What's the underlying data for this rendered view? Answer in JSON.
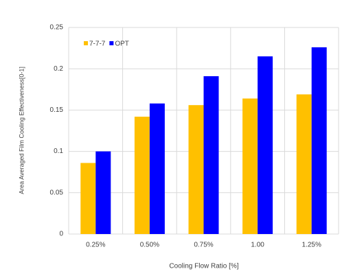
{
  "chart_data": {
    "type": "bar",
    "x_label": "Cooling Flow Ratio [%]",
    "y_label": "Area Averaged Film Cooling Effectiveness[0-1]",
    "categories": [
      "0.25%",
      "0.50%",
      "0.75%",
      "1.00",
      "1.25%"
    ],
    "series": [
      {
        "name": "7-7-7",
        "color": "#ffc000",
        "values": [
          0.086,
          0.142,
          0.156,
          0.164,
          0.169
        ]
      },
      {
        "name": "OPT",
        "color": "#0000ff",
        "values": [
          0.1,
          0.158,
          0.191,
          0.215,
          0.226
        ]
      }
    ],
    "ylim": [
      0,
      0.25
    ],
    "yticks": [
      0,
      0.05,
      0.1,
      0.15,
      0.2,
      0.25
    ],
    "grid": true,
    "legend": "top-left"
  }
}
